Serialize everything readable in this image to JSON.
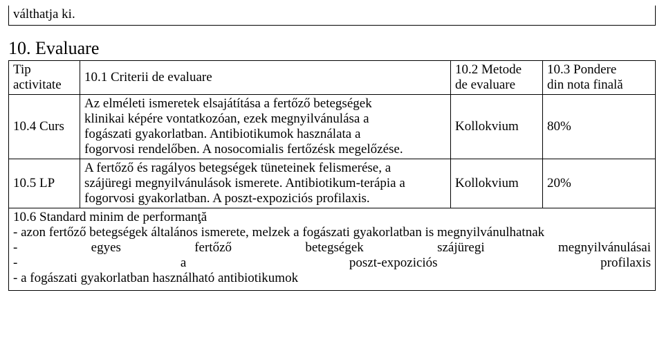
{
  "top_fragment": "válthatja ki.",
  "section_heading": "10. Evaluare",
  "header": {
    "c1a": "Tip",
    "c1b": "activitate",
    "c2": "10.1 Criterii de evaluare",
    "c3a": "10.2 Metode",
    "c3b": "de evaluare",
    "c4a": "10.3 Pondere",
    "c4b": "din nota finală"
  },
  "row1": {
    "label": "10.4 Curs",
    "text_l1": "Az elméleti ismeretek elsajátítása a fertőző betegségek",
    "text_l2": "klinikai képére vontatkozóan, ezek megnyilvánulása a",
    "text_l3": "fogászati gyakorlatban. Antibiotikumok használata a",
    "text_l4": "fogorvosi rendelőben. A nosocomialis fertőzésk megelőzése.",
    "method": "Kollokvium",
    "weight": "80%"
  },
  "row2": {
    "label": "10.5 LP",
    "text_l1": "A fertőző és ragályos betegségek tüneteinek felismerése, a",
    "text_l2": "szájüregi megnyilvánulások ismerete. Antibiotikum-terápia a",
    "text_l3": "fogorvosi gyakorlatban. A poszt-expoziciós profilaxis.",
    "method": "Kollokvium",
    "weight": "20%"
  },
  "footer": {
    "heading": "10.6 Standard minim de performanţă",
    "line1": "- azon fertőző betegségek általános ismerete, melzek a fogászati gyakorlatban is megnyilvánulhatnak",
    "line2": {
      "a": "-",
      "b": "egyes",
      "c": "fertőző",
      "d": "betegségek",
      "e": "szájüregi",
      "f": "megnyilvánulásai"
    },
    "line3": {
      "a": "-",
      "b": "a",
      "c": "poszt-expoziciós",
      "d": "profilaxis"
    },
    "line4": "- a fogászati gyakorlatban használható antibiotikumok"
  }
}
